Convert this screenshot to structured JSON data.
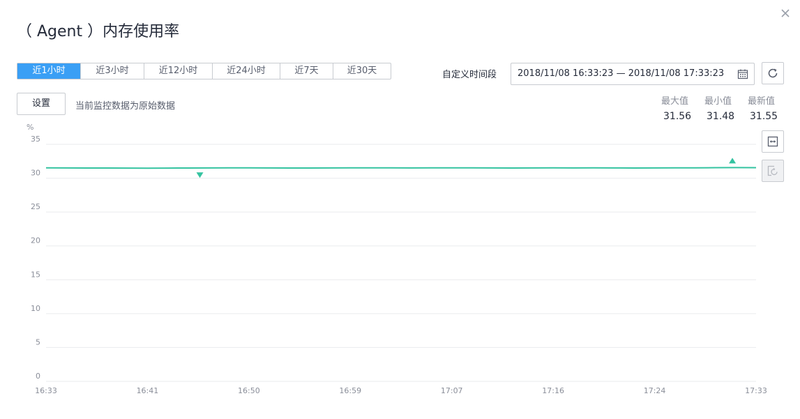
{
  "dialog": {
    "title": "（ Agent ）内存使用率",
    "close_icon": "close-icon"
  },
  "toolbar": {
    "range_tabs": [
      "近1小时",
      "近3小时",
      "近12小时",
      "近24小时",
      "近7天",
      "近30天"
    ],
    "active_range": "近1小时",
    "custom_time_label": "自定义时间段",
    "date_range_value": "2018/11/08 16:33:23 — 2018/11/08 17:33:23",
    "calendar_icon": "calendar-icon",
    "refresh_icon": "refresh-icon"
  },
  "settings": {
    "button_label": "设置",
    "note": "当前监控数据为原始数据"
  },
  "stats": {
    "max_label": "最大值",
    "min_label": "最小值",
    "latest_label": "最新值",
    "max_value": "31.56",
    "min_value": "31.48",
    "latest_value": "31.55"
  },
  "side_tools": {
    "fit_icon": "fit-width-icon",
    "restore_icon": "zoom-reset-icon"
  },
  "colors": {
    "accent": "#3a9ff5",
    "series": "#34c3a0",
    "grid": "#eaebee",
    "axis_text": "#8a8e99"
  },
  "chart_data": {
    "type": "line",
    "y_unit": "%",
    "ylim": [
      0,
      35
    ],
    "y_ticks": [
      "35",
      "30",
      "25",
      "20",
      "15",
      "10",
      "5",
      "0"
    ],
    "x_ticks": [
      "16:33",
      "16:41",
      "16:50",
      "16:59",
      "17:07",
      "17:16",
      "17:24",
      "17:33"
    ],
    "grid": true,
    "series": [
      {
        "values": [
          31.52,
          31.51,
          31.5,
          31.5,
          31.49,
          31.48,
          31.49,
          31.5,
          31.51,
          31.53,
          31.52,
          31.51,
          31.5,
          31.5,
          31.51,
          31.52,
          31.53,
          31.52,
          31.51,
          31.52,
          31.53,
          31.52,
          31.51,
          31.5,
          31.51,
          31.52,
          31.51,
          31.52,
          31.51,
          31.5,
          31.51,
          31.52,
          31.53,
          31.55,
          31.56,
          31.55
        ]
      }
    ],
    "max_marker": {
      "time": "17:31",
      "value": 31.56
    },
    "min_marker": {
      "time": "16:46",
      "value": 31.48
    }
  }
}
